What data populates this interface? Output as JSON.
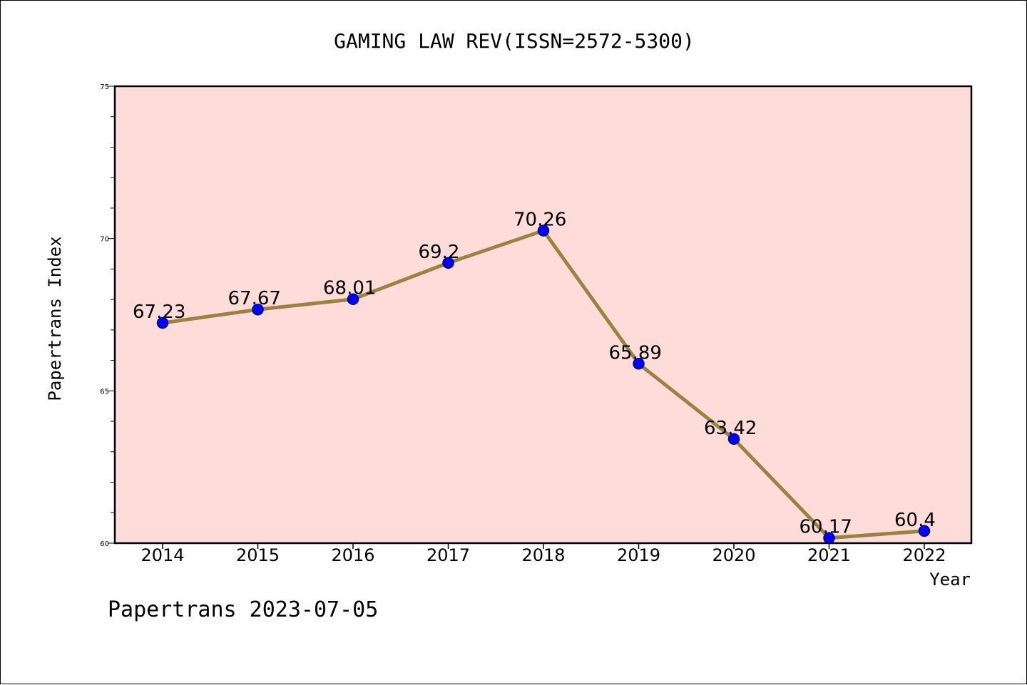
{
  "chart_data": {
    "type": "line",
    "title": "GAMING LAW REV(ISSN=2572-5300)",
    "xlabel": "Year",
    "ylabel": "Papertrans Index",
    "footer": "Papertrans 2023-07-05",
    "x": [
      "2014",
      "2015",
      "2016",
      "2017",
      "2018",
      "2019",
      "2020",
      "2021",
      "2022"
    ],
    "values": [
      67.23,
      67.67,
      68.01,
      69.2,
      70.26,
      65.89,
      63.42,
      60.17,
      60.4
    ],
    "value_labels": [
      "67.23",
      "67.67",
      "68.01",
      "69.2",
      "70.26",
      "65.89",
      "63.42",
      "60.17",
      "60.4"
    ],
    "ylim": [
      60,
      75
    ],
    "y_major_ticks": [
      "60",
      "65",
      "70",
      "75"
    ],
    "y_minor_step": 1,
    "grid": false,
    "colors": {
      "plot_background": "#fddcd9",
      "line": "#9a8340",
      "marker": "#0000ff",
      "marker_edge": "#000080"
    }
  }
}
